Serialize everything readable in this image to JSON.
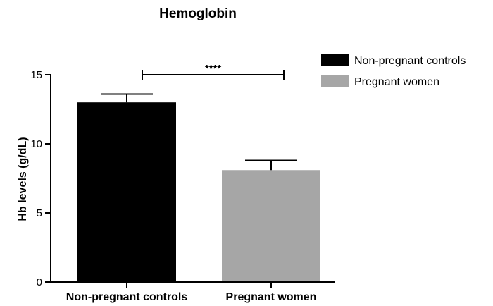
{
  "chart_data": {
    "type": "bar",
    "title": "Hemoglobin",
    "ylabel": "Hb levels (g/dL)",
    "xlabel": "",
    "ylim": [
      0,
      15
    ],
    "yticks": [
      0,
      5,
      10,
      15
    ],
    "categories": [
      "Non-pregnant controls",
      "Pregnant women"
    ],
    "values": [
      13.0,
      8.1
    ],
    "errors": [
      0.6,
      0.7
    ],
    "colors": [
      "#000000",
      "#a6a6a6"
    ],
    "legend": {
      "placement": "top-right",
      "entries": [
        "Non-pregnant controls",
        "Pregnant women"
      ]
    },
    "significance": {
      "between": [
        0,
        1
      ],
      "label": "****"
    },
    "grid": false
  }
}
